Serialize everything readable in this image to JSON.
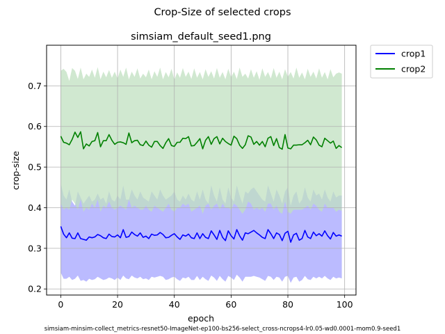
{
  "figure": {
    "suptitle": "Crop-Size of selected crops",
    "footer": "simsiam-minsim-collect_metrics-resnet50-ImageNet-ep100-bs256-select_cross-ncrops4-lr0.05-wd0.0001-mom0.9-seed1"
  },
  "chart_data": {
    "type": "line",
    "title": "simsiam_default_seed1.png",
    "xlabel": "epoch",
    "ylabel": "crop-size",
    "xlim": [
      -5,
      104
    ],
    "ylim": [
      0.185,
      0.8
    ],
    "xticks": [
      0,
      20,
      40,
      60,
      80,
      100
    ],
    "yticks": [
      0.2,
      0.3,
      0.4,
      0.5,
      0.6,
      0.7
    ],
    "xtick_labels": [
      "0",
      "20",
      "40",
      "60",
      "80",
      "100"
    ],
    "ytick_labels": [
      "0.2",
      "0.3",
      "0.4",
      "0.5",
      "0.6",
      "0.7"
    ],
    "grid": true,
    "legend": "outside-top-right",
    "x": [
      0,
      1,
      2,
      3,
      4,
      5,
      6,
      7,
      8,
      9,
      10,
      11,
      12,
      13,
      14,
      15,
      16,
      17,
      18,
      19,
      20,
      21,
      22,
      23,
      24,
      25,
      26,
      27,
      28,
      29,
      30,
      31,
      32,
      33,
      34,
      35,
      36,
      37,
      38,
      39,
      40,
      41,
      42,
      43,
      44,
      45,
      46,
      47,
      48,
      49,
      50,
      51,
      52,
      53,
      54,
      55,
      56,
      57,
      58,
      59,
      60,
      61,
      62,
      63,
      64,
      65,
      66,
      67,
      68,
      69,
      70,
      71,
      72,
      73,
      74,
      75,
      76,
      77,
      78,
      79,
      80,
      81,
      82,
      83,
      84,
      85,
      86,
      87,
      88,
      89,
      90,
      91,
      92,
      93,
      94,
      95,
      96,
      97,
      98,
      99
    ],
    "series": [
      {
        "name": "crop1",
        "color": "#0000ff",
        "fill": "#bbbbff",
        "values": [
          0.354,
          0.335,
          0.326,
          0.338,
          0.325,
          0.324,
          0.338,
          0.324,
          0.322,
          0.32,
          0.328,
          0.326,
          0.328,
          0.334,
          0.331,
          0.326,
          0.324,
          0.335,
          0.329,
          0.328,
          0.333,
          0.326,
          0.346,
          0.327,
          0.329,
          0.34,
          0.334,
          0.33,
          0.338,
          0.327,
          0.33,
          0.324,
          0.335,
          0.332,
          0.333,
          0.339,
          0.334,
          0.326,
          0.327,
          0.332,
          0.336,
          0.328,
          0.322,
          0.333,
          0.33,
          0.335,
          0.326,
          0.324,
          0.338,
          0.324,
          0.336,
          0.327,
          0.324,
          0.343,
          0.333,
          0.322,
          0.344,
          0.327,
          0.319,
          0.343,
          0.331,
          0.323,
          0.346,
          0.331,
          0.32,
          0.338,
          0.336,
          0.34,
          0.344,
          0.338,
          0.333,
          0.327,
          0.324,
          0.346,
          0.336,
          0.324,
          0.338,
          0.334,
          0.319,
          0.337,
          0.342,
          0.315,
          0.333,
          0.337,
          0.32,
          0.324,
          0.344,
          0.328,
          0.324,
          0.34,
          0.331,
          0.336,
          0.33,
          0.343,
          0.331,
          0.323,
          0.339,
          0.33,
          0.333,
          0.33
        ],
        "upper": [
          0.46,
          0.43,
          0.42,
          0.445,
          0.415,
          0.405,
          0.44,
          0.425,
          0.41,
          0.42,
          0.43,
          0.415,
          0.42,
          0.435,
          0.42,
          0.425,
          0.41,
          0.44,
          0.42,
          0.415,
          0.43,
          0.42,
          0.455,
          0.42,
          0.42,
          0.445,
          0.43,
          0.42,
          0.44,
          0.425,
          0.42,
          0.415,
          0.44,
          0.43,
          0.42,
          0.445,
          0.43,
          0.42,
          0.425,
          0.43,
          0.44,
          0.42,
          0.415,
          0.43,
          0.42,
          0.435,
          0.42,
          0.415,
          0.44,
          0.42,
          0.445,
          0.42,
          0.41,
          0.455,
          0.43,
          0.415,
          0.45,
          0.42,
          0.41,
          0.45,
          0.425,
          0.415,
          0.455,
          0.43,
          0.41,
          0.44,
          0.435,
          0.445,
          0.45,
          0.44,
          0.43,
          0.42,
          0.415,
          0.455,
          0.435,
          0.415,
          0.445,
          0.43,
          0.41,
          0.44,
          0.45,
          0.405,
          0.43,
          0.44,
          0.41,
          0.42,
          0.45,
          0.425,
          0.415,
          0.445,
          0.43,
          0.435,
          0.42,
          0.445,
          0.425,
          0.415,
          0.44,
          0.425,
          0.43,
          0.43
        ],
        "lower": [
          0.24,
          0.225,
          0.225,
          0.23,
          0.222,
          0.225,
          0.233,
          0.22,
          0.222,
          0.218,
          0.225,
          0.222,
          0.224,
          0.23,
          0.226,
          0.222,
          0.224,
          0.228,
          0.226,
          0.222,
          0.228,
          0.222,
          0.233,
          0.226,
          0.224,
          0.233,
          0.228,
          0.226,
          0.23,
          0.224,
          0.226,
          0.222,
          0.23,
          0.228,
          0.23,
          0.232,
          0.23,
          0.222,
          0.224,
          0.228,
          0.23,
          0.224,
          0.22,
          0.228,
          0.226,
          0.23,
          0.222,
          0.222,
          0.232,
          0.222,
          0.23,
          0.224,
          0.22,
          0.233,
          0.228,
          0.22,
          0.232,
          0.224,
          0.218,
          0.232,
          0.228,
          0.222,
          0.235,
          0.228,
          0.218,
          0.23,
          0.23,
          0.23,
          0.232,
          0.23,
          0.228,
          0.224,
          0.22,
          0.232,
          0.23,
          0.222,
          0.23,
          0.228,
          0.218,
          0.23,
          0.232,
          0.215,
          0.228,
          0.23,
          0.218,
          0.222,
          0.232,
          0.224,
          0.222,
          0.23,
          0.226,
          0.23,
          0.226,
          0.232,
          0.226,
          0.222,
          0.23,
          0.226,
          0.228,
          0.226
        ]
      },
      {
        "name": "crop2",
        "color": "#008000",
        "fill": "#c0e0c0",
        "values": [
          0.576,
          0.561,
          0.559,
          0.555,
          0.568,
          0.586,
          0.573,
          0.587,
          0.545,
          0.557,
          0.552,
          0.563,
          0.565,
          0.585,
          0.55,
          0.565,
          0.565,
          0.58,
          0.566,
          0.556,
          0.561,
          0.562,
          0.56,
          0.556,
          0.584,
          0.56,
          0.565,
          0.566,
          0.555,
          0.553,
          0.564,
          0.554,
          0.549,
          0.563,
          0.563,
          0.553,
          0.546,
          0.56,
          0.57,
          0.553,
          0.551,
          0.561,
          0.561,
          0.571,
          0.57,
          0.575,
          0.552,
          0.553,
          0.561,
          0.57,
          0.545,
          0.566,
          0.575,
          0.556,
          0.57,
          0.575,
          0.557,
          0.571,
          0.563,
          0.558,
          0.554,
          0.576,
          0.57,
          0.554,
          0.546,
          0.555,
          0.577,
          0.574,
          0.556,
          0.563,
          0.554,
          0.563,
          0.55,
          0.571,
          0.575,
          0.553,
          0.57,
          0.548,
          0.544,
          0.58,
          0.547,
          0.545,
          0.554,
          0.554,
          0.555,
          0.555,
          0.56,
          0.566,
          0.555,
          0.574,
          0.567,
          0.554,
          0.55,
          0.571,
          0.565,
          0.559,
          0.564,
          0.546,
          0.553,
          0.548
        ],
        "upper": [
          0.737,
          0.742,
          0.734,
          0.712,
          0.744,
          0.737,
          0.717,
          0.745,
          0.716,
          0.73,
          0.722,
          0.74,
          0.72,
          0.746,
          0.716,
          0.735,
          0.721,
          0.739,
          0.72,
          0.735,
          0.718,
          0.74,
          0.722,
          0.745,
          0.716,
          0.735,
          0.722,
          0.743,
          0.718,
          0.73,
          0.721,
          0.74,
          0.716,
          0.736,
          0.722,
          0.745,
          0.716,
          0.734,
          0.721,
          0.742,
          0.715,
          0.733,
          0.72,
          0.744,
          0.722,
          0.735,
          0.717,
          0.743,
          0.72,
          0.734,
          0.716,
          0.741,
          0.722,
          0.736,
          0.718,
          0.744,
          0.72,
          0.734,
          0.716,
          0.742,
          0.721,
          0.735,
          0.717,
          0.745,
          0.722,
          0.73,
          0.718,
          0.741,
          0.72,
          0.736,
          0.715,
          0.743,
          0.722,
          0.734,
          0.718,
          0.744,
          0.72,
          0.735,
          0.716,
          0.741,
          0.722,
          0.734,
          0.718,
          0.745,
          0.72,
          0.733,
          0.716,
          0.742,
          0.722,
          0.735,
          0.718,
          0.743,
          0.72,
          0.734,
          0.716,
          0.741,
          0.721,
          0.73,
          0.733,
          0.73
        ],
        "lower": [
          0.41,
          0.395,
          0.4,
          0.395,
          0.42,
          0.41,
          0.395,
          0.42,
          0.39,
          0.4,
          0.395,
          0.41,
          0.4,
          0.42,
          0.39,
          0.405,
          0.4,
          0.415,
          0.4,
          0.395,
          0.4,
          0.405,
          0.4,
          0.395,
          0.42,
          0.4,
          0.405,
          0.4,
          0.395,
          0.395,
          0.405,
          0.395,
          0.39,
          0.405,
          0.4,
          0.395,
          0.39,
          0.4,
          0.41,
          0.395,
          0.39,
          0.4,
          0.4,
          0.41,
          0.405,
          0.41,
          0.39,
          0.395,
          0.4,
          0.405,
          0.385,
          0.405,
          0.41,
          0.395,
          0.405,
          0.41,
          0.395,
          0.41,
          0.4,
          0.4,
          0.395,
          0.41,
          0.405,
          0.395,
          0.385,
          0.395,
          0.415,
          0.41,
          0.395,
          0.4,
          0.395,
          0.4,
          0.39,
          0.41,
          0.41,
          0.395,
          0.405,
          0.39,
          0.385,
          0.415,
          0.39,
          0.385,
          0.395,
          0.395,
          0.395,
          0.395,
          0.4,
          0.405,
          0.395,
          0.41,
          0.405,
          0.395,
          0.39,
          0.41,
          0.4,
          0.4,
          0.4,
          0.39,
          0.395,
          0.392
        ]
      }
    ]
  }
}
